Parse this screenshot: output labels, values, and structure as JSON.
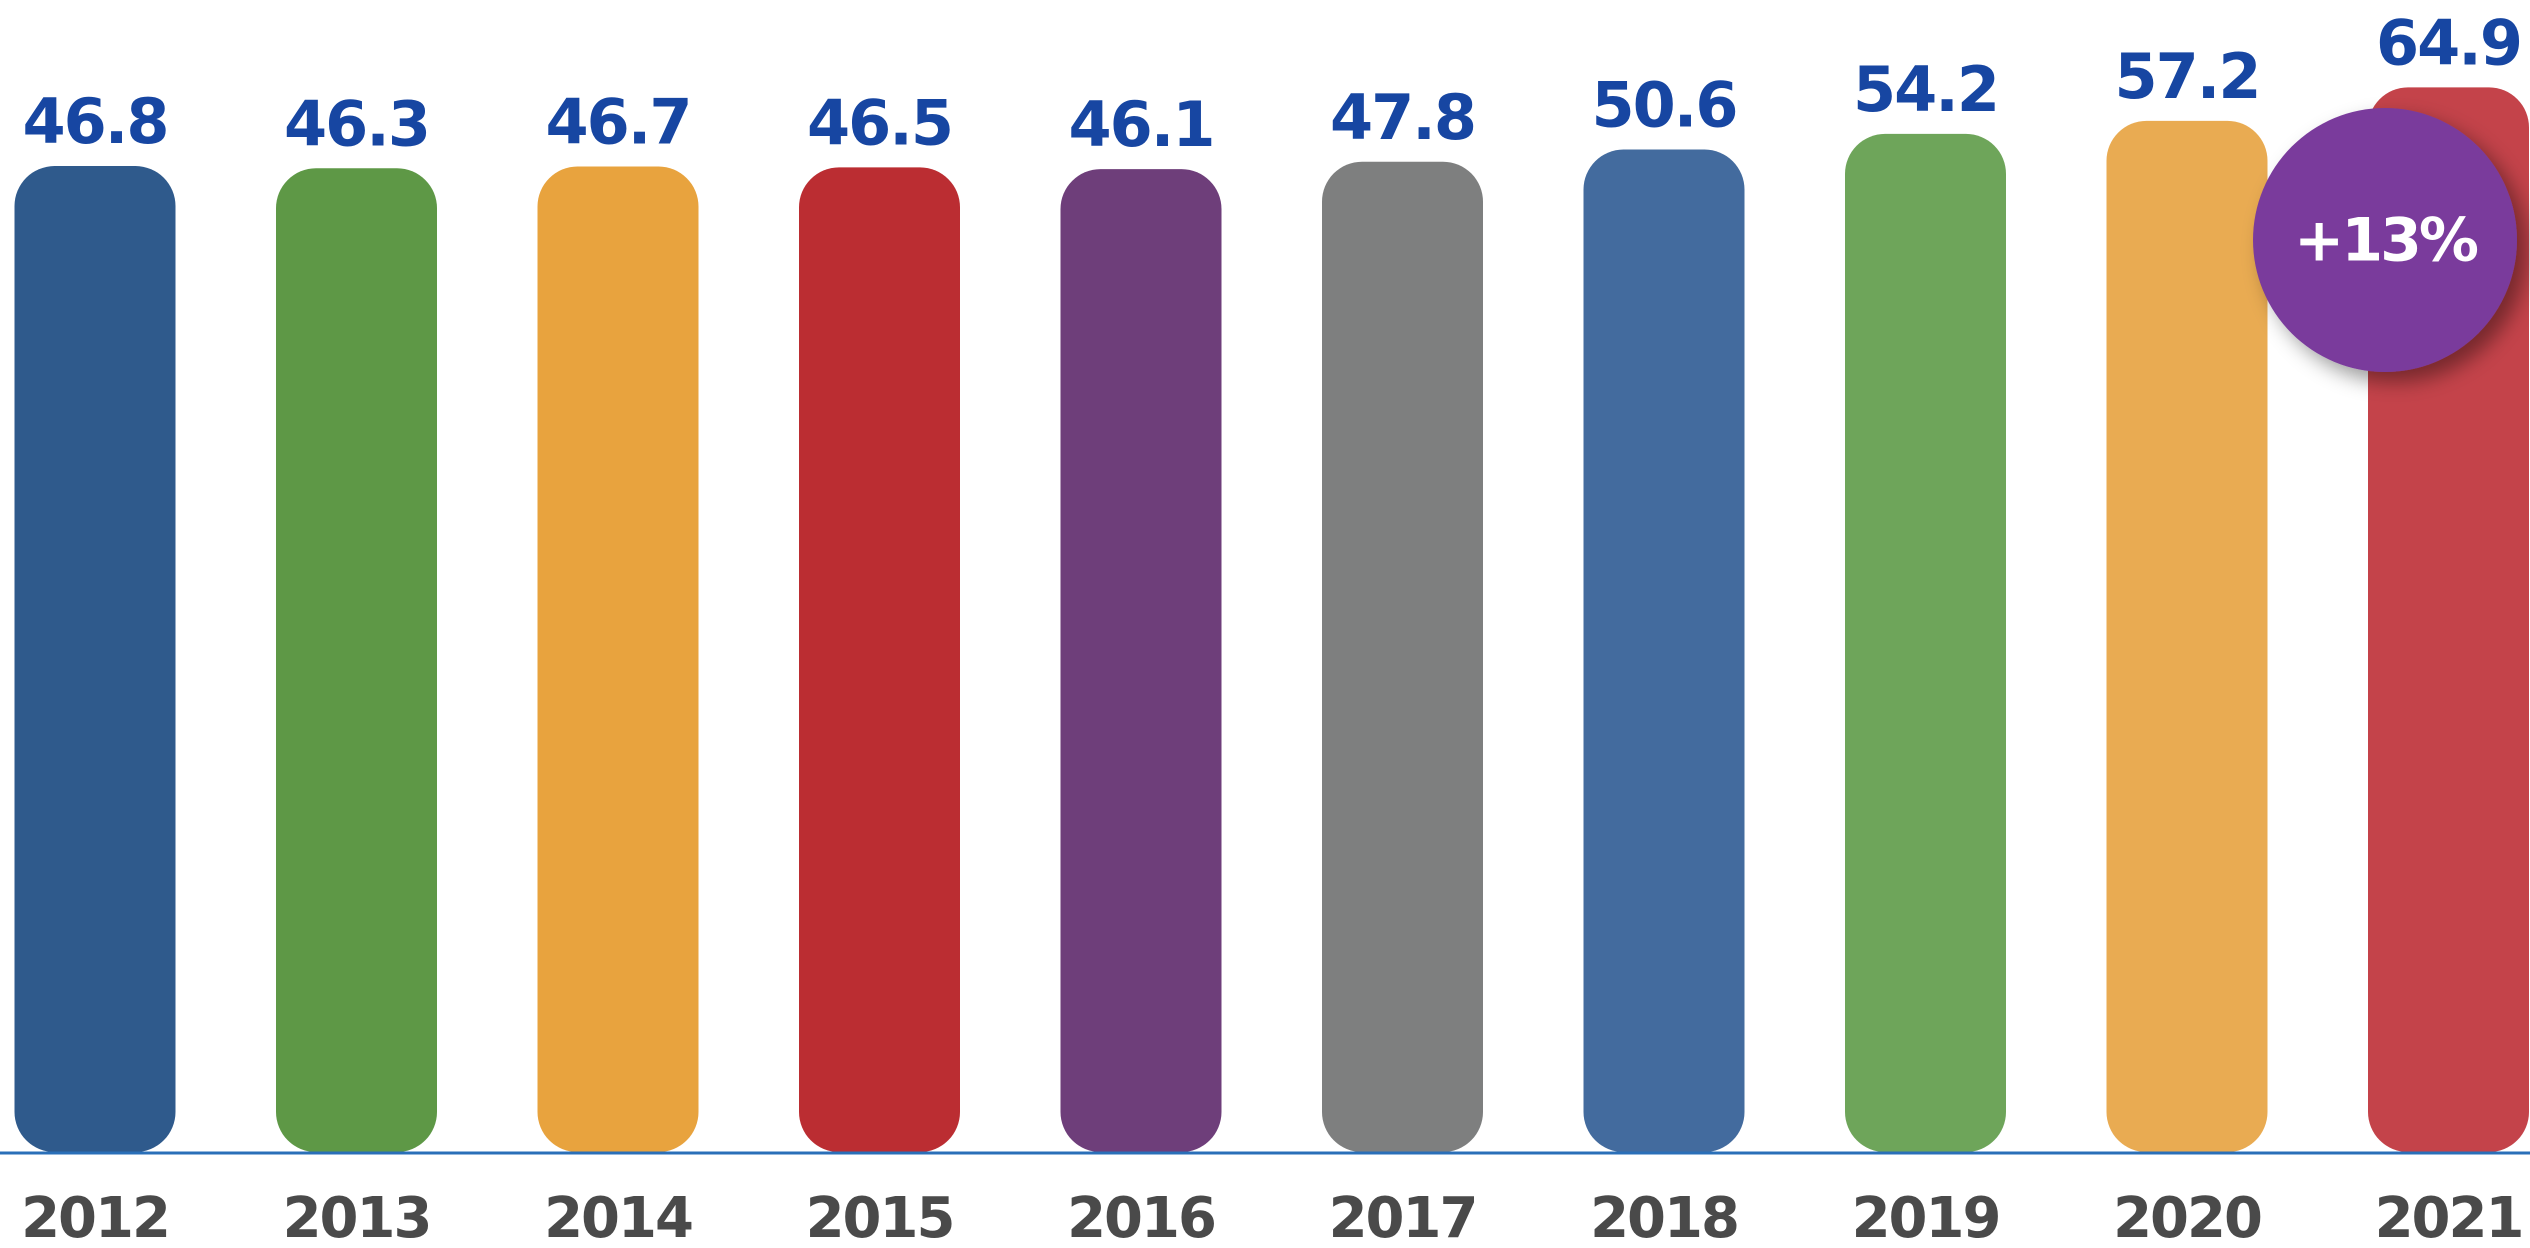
{
  "chart_data": {
    "type": "bar",
    "categories": [
      "2012",
      "2013",
      "2014",
      "2015",
      "2016",
      "2017",
      "2018",
      "2019",
      "2020",
      "2021"
    ],
    "values": [
      46.8,
      46.3,
      46.7,
      46.5,
      46.1,
      47.8,
      50.6,
      54.2,
      57.2,
      64.9
    ],
    "colors": [
      "#2f5a8c",
      "#5e9846",
      "#e8a33e",
      "#bb2d32",
      "#6e3e7a",
      "#7e7f7f",
      "#436b9e",
      "#6ea55a",
      "#e9ab52",
      "#c4434a"
    ],
    "ylim": [
      -180,
      85
    ],
    "annotation": "+13%"
  }
}
